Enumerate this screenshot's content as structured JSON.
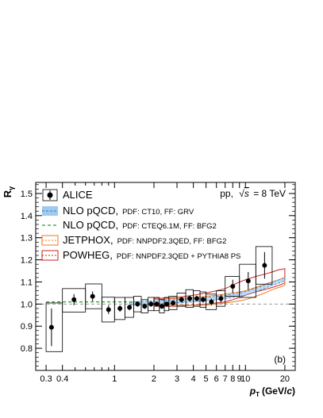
{
  "chart_data": {
    "type": "scatter",
    "x_scale": "log",
    "xlim": [
      0.25,
      24
    ],
    "ylim": [
      0.7,
      1.55
    ],
    "xlabel_main": "p",
    "xlabel_sub": "T",
    "xlabel_unit": "(GeV/",
    "xlabel_unit_c": "c",
    "xlabel_unit_close": ")",
    "ylabel_main": "R",
    "ylabel_sub": "γ",
    "x_ticks": [
      {
        "v": 0.3,
        "label": "0.3"
      },
      {
        "v": 0.4,
        "label": "0.4"
      },
      {
        "v": 1,
        "label": "1"
      },
      {
        "v": 2,
        "label": "2"
      },
      {
        "v": 3,
        "label": "3"
      },
      {
        "v": 4,
        "label": "4"
      },
      {
        "v": 5,
        "label": "5"
      },
      {
        "v": 6,
        "label": "6"
      },
      {
        "v": 7,
        "label": "7"
      },
      {
        "v": 8,
        "label": "8"
      },
      {
        "v": 9,
        "label": "9"
      },
      {
        "v": 10,
        "label": "10"
      },
      {
        "v": 20,
        "label": "20"
      }
    ],
    "x_minor_ticks": [
      0.5,
      0.6,
      0.7,
      0.8,
      0.9
    ],
    "y_ticks": [
      {
        "v": 0.8,
        "label": "0.8"
      },
      {
        "v": 0.9,
        "label": "0.9"
      },
      {
        "v": 1.0,
        "label": "1.0"
      },
      {
        "v": 1.1,
        "label": "1.1"
      },
      {
        "v": 1.2,
        "label": "1.2"
      },
      {
        "v": 1.3,
        "label": "1.3"
      },
      {
        "v": 1.4,
        "label": "1.4"
      },
      {
        "v": 1.5,
        "label": "1.5"
      }
    ],
    "reference_line": 1.0,
    "system_label_pp": "pp,",
    "system_label_sqrt": "√",
    "system_label_s": "s",
    "system_label_energy": "= 8 TeV",
    "panel_label": "(b)",
    "legend": [
      {
        "key": "ALICE",
        "label": "ALICE",
        "detail": "",
        "style": "marker"
      },
      {
        "key": "nlo_grv",
        "label": "NLO pQCD,",
        "detail": "PDF: CT10, FF: GRV",
        "style": "blue-band"
      },
      {
        "key": "nlo_bfg2",
        "label": "NLO pQCD,",
        "detail": "PDF: CTEQ6.1M, FF: BFG2",
        "style": "green-dashed"
      },
      {
        "key": "jetphox",
        "label": "JETPHOX,",
        "detail": "PDF: NNPDF2.3QED, FF: BFG2",
        "style": "orange-band"
      },
      {
        "key": "powheg",
        "label": "POWHEG,",
        "detail": "PDF: NNPDF2.3QED + PYTHIA8 PS",
        "style": "red-band"
      }
    ],
    "alice_points": [
      {
        "x": 0.33,
        "y": 0.895,
        "xlo": 0.3,
        "xhi": 0.4,
        "stat": 0.085,
        "sys_lo": 0.11,
        "sys_hi": 0.11
      },
      {
        "x": 0.49,
        "y": 1.02,
        "xlo": 0.4,
        "xhi": 0.6,
        "stat": 0.025,
        "sys_lo": 0.056,
        "sys_hi": 0.05
      },
      {
        "x": 0.68,
        "y": 1.035,
        "xlo": 0.6,
        "xhi": 0.8,
        "stat": 0.022,
        "sys_lo": 0.056,
        "sys_hi": 0.056
      },
      {
        "x": 0.9,
        "y": 0.975,
        "xlo": 0.8,
        "xhi": 1.0,
        "stat": 0.02,
        "sys_lo": 0.056,
        "sys_hi": 0.056
      },
      {
        "x": 1.1,
        "y": 0.98,
        "xlo": 1.0,
        "xhi": 1.2,
        "stat": 0.015,
        "sys_lo": 0.05,
        "sys_hi": 0.05
      },
      {
        "x": 1.3,
        "y": 0.985,
        "xlo": 1.2,
        "xhi": 1.4,
        "stat": 0.013,
        "sys_lo": 0.045,
        "sys_hi": 0.045
      },
      {
        "x": 1.5,
        "y": 1.0,
        "xlo": 1.4,
        "xhi": 1.6,
        "stat": 0.012,
        "sys_lo": 0.035,
        "sys_hi": 0.035
      },
      {
        "x": 1.7,
        "y": 0.99,
        "xlo": 1.6,
        "xhi": 1.8,
        "stat": 0.012,
        "sys_lo": 0.03,
        "sys_hi": 0.03
      },
      {
        "x": 1.9,
        "y": 1.0,
        "xlo": 1.8,
        "xhi": 2.0,
        "stat": 0.012,
        "sys_lo": 0.03,
        "sys_hi": 0.03
      },
      {
        "x": 2.1,
        "y": 1.0,
        "xlo": 2.0,
        "xhi": 2.2,
        "stat": 0.012,
        "sys_lo": 0.03,
        "sys_hi": 0.03
      },
      {
        "x": 2.3,
        "y": 0.99,
        "xlo": 2.2,
        "xhi": 2.4,
        "stat": 0.012,
        "sys_lo": 0.03,
        "sys_hi": 0.03
      },
      {
        "x": 2.5,
        "y": 1.0,
        "xlo": 2.4,
        "xhi": 2.6,
        "stat": 0.012,
        "sys_lo": 0.03,
        "sys_hi": 0.03
      },
      {
        "x": 2.8,
        "y": 1.005,
        "xlo": 2.6,
        "xhi": 3.0,
        "stat": 0.012,
        "sys_lo": 0.03,
        "sys_hi": 0.03
      },
      {
        "x": 3.25,
        "y": 1.02,
        "xlo": 3.0,
        "xhi": 3.5,
        "stat": 0.012,
        "sys_lo": 0.03,
        "sys_hi": 0.03
      },
      {
        "x": 3.75,
        "y": 1.025,
        "xlo": 3.5,
        "xhi": 4.0,
        "stat": 0.013,
        "sys_lo": 0.04,
        "sys_hi": 0.04
      },
      {
        "x": 4.25,
        "y": 1.025,
        "xlo": 4.0,
        "xhi": 4.5,
        "stat": 0.013,
        "sys_lo": 0.035,
        "sys_hi": 0.035
      },
      {
        "x": 4.75,
        "y": 1.02,
        "xlo": 4.5,
        "xhi": 5.0,
        "stat": 0.013,
        "sys_lo": 0.035,
        "sys_hi": 0.035
      },
      {
        "x": 5.5,
        "y": 1.01,
        "xlo": 5.0,
        "xhi": 6.0,
        "stat": 0.015,
        "sys_lo": 0.035,
        "sys_hi": 0.035
      },
      {
        "x": 6.5,
        "y": 1.025,
        "xlo": 6.0,
        "xhi": 7.0,
        "stat": 0.018,
        "sys_lo": 0.035,
        "sys_hi": 0.035
      },
      {
        "x": 8.0,
        "y": 1.08,
        "xlo": 7.0,
        "xhi": 9.0,
        "stat": 0.03,
        "sys_lo": 0.045,
        "sys_hi": 0.045
      },
      {
        "x": 10.5,
        "y": 1.105,
        "xlo": 9.0,
        "xhi": 12.0,
        "stat": 0.04,
        "sys_lo": 0.075,
        "sys_hi": 0.075
      },
      {
        "x": 14.0,
        "y": 1.175,
        "xlo": 12.0,
        "xhi": 16.0,
        "stat": 0.06,
        "sys_lo": 0.085,
        "sys_hi": 0.085
      }
    ],
    "nlo_grv_band": {
      "x": [
        1.3,
        2,
        3,
        4,
        5,
        6,
        7,
        8,
        9,
        10,
        12,
        14,
        16,
        18,
        20
      ],
      "lo": [
        0.995,
        1.0,
        1.005,
        1.01,
        1.015,
        1.02,
        1.025,
        1.03,
        1.035,
        1.04,
        1.055,
        1.07,
        1.085,
        1.095,
        1.105
      ],
      "hi": [
        1.01,
        1.015,
        1.02,
        1.025,
        1.03,
        1.035,
        1.04,
        1.045,
        1.05,
        1.057,
        1.072,
        1.085,
        1.1,
        1.11,
        1.12
      ]
    },
    "nlo_bfg2_line": {
      "x": [
        0.3,
        0.4,
        0.6,
        0.8,
        1.0,
        1.2,
        1.5
      ],
      "y": [
        1.01,
        1.01,
        1.01,
        1.01,
        1.01,
        1.01,
        1.01
      ]
    },
    "jetphox_band": {
      "x": [
        2,
        3,
        4,
        5,
        6,
        7,
        8,
        9,
        10,
        12,
        14,
        16,
        18,
        20
      ],
      "lo": [
        0.995,
        0.995,
        0.995,
        0.995,
        1.0,
        1.005,
        1.01,
        1.015,
        1.02,
        1.035,
        1.05,
        1.065,
        1.075,
        1.085
      ],
      "hi": [
        1.02,
        1.025,
        1.03,
        1.035,
        1.04,
        1.045,
        1.05,
        1.055,
        1.06,
        1.075,
        1.09,
        1.1,
        1.11,
        1.12
      ]
    },
    "powheg_band": {
      "x": [
        2,
        3,
        4,
        5,
        6,
        7,
        8,
        9,
        10,
        12,
        14,
        16,
        18,
        20
      ],
      "lo": [
        0.99,
        0.99,
        0.995,
        1.0,
        1.005,
        1.01,
        1.02,
        1.03,
        1.04,
        1.055,
        1.065,
        1.075,
        1.085,
        1.095
      ],
      "hi": [
        1.025,
        1.03,
        1.04,
        1.05,
        1.06,
        1.07,
        1.085,
        1.1,
        1.11,
        1.125,
        1.135,
        1.145,
        1.155,
        1.16
      ]
    },
    "colors": {
      "data": "#000000",
      "sys_box": "#000000",
      "reference": "#999999",
      "nlo_grv_fill": "#9ecbf0",
      "nlo_grv_line": "#3c78b4",
      "nlo_bfg2_line": "#22a022",
      "jetphox_line": "#f07a1e",
      "powheg_line": "#cc2222"
    }
  }
}
